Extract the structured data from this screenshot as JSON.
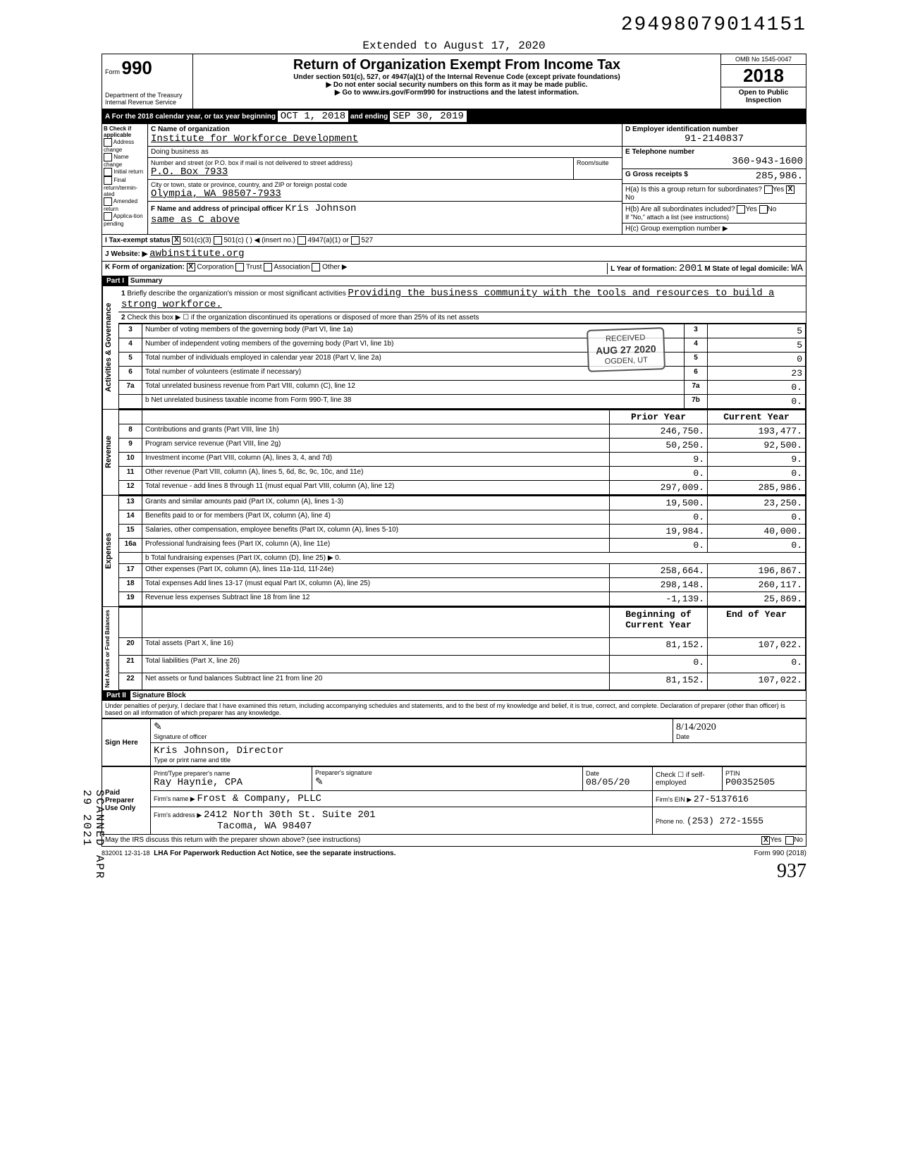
{
  "doc_id": "29498079014151",
  "extended_text": "Extended to August 17, 2020",
  "form": {
    "number": "990",
    "form_prefix": "Form",
    "dept": "Department of the Treasury",
    "irs": "Internal Revenue Service",
    "title": "Return of Organization Exempt From Income Tax",
    "subtitle": "Under section 501(c), 527, or 4947(a)(1) of the Internal Revenue Code (except private foundations)",
    "note1": "▶ Do not enter social security numbers on this form as it may be made public.",
    "note2": "▶ Go to www.irs.gov/Form990 for instructions and the latest information.",
    "omb": "OMB No 1545-0047",
    "year": "2018",
    "open": "Open to Public Inspection"
  },
  "line_a": {
    "label": "A For the 2018 calendar year, or tax year beginning",
    "begin": "OCT 1, 2018",
    "and_ending": "and ending",
    "end": "SEP 30, 2019"
  },
  "section_b": {
    "label": "B Check if applicable",
    "opts": [
      "Address change",
      "Name change",
      "Initial return",
      "Final return/termin-ated",
      "Amended return",
      "Applica-tion pending"
    ]
  },
  "section_c": {
    "label": "C Name of organization",
    "org_name": "Institute for Workforce Development",
    "dba_label": "Doing business as",
    "dba": "",
    "street_label": "Number and street (or P.O. box if mail is not delivered to street address)",
    "room_label": "Room/suite",
    "street": "P.O. Box 7933",
    "city_label": "City or town, state or province, country, and ZIP or foreign postal code",
    "city": "Olympia, WA  98507-7933",
    "officer_label": "F Name and address of principal officer",
    "officer": "Kris Johnson",
    "officer_addr": "same as C above"
  },
  "section_d": {
    "label": "D Employer identification number",
    "ein": "91-2140837"
  },
  "section_e": {
    "label": "E Telephone number",
    "phone": "360-943-1600"
  },
  "section_g": {
    "label": "G Gross receipts $",
    "value": "285,986."
  },
  "section_h": {
    "a_label": "H(a) Is this a group return for subordinates?",
    "a_yes": "Yes",
    "a_no": "No",
    "a_checked": "X",
    "b_label": "H(b) Are all subordinates included?",
    "b_yes": "Yes",
    "b_no": "No",
    "b_note": "If \"No,\" attach a list (see instructions)",
    "c_label": "H(c) Group exemption number ▶"
  },
  "line_i": {
    "label": "I Tax-exempt status",
    "c3_checked": "X",
    "c3": "501(c)(3)",
    "c_other": "501(c) (      ) ◀ (insert no.)",
    "a1": "4947(a)(1) or",
    "527": "527"
  },
  "line_j": {
    "label": "J Website: ▶",
    "value": "awbinstitute.org"
  },
  "line_k": {
    "label": "K Form of organization:",
    "corp_checked": "X",
    "corp": "Corporation",
    "trust": "Trust",
    "assoc": "Association",
    "other": "Other ▶"
  },
  "line_l": {
    "label": "L Year of formation:",
    "value": "2001",
    "state_label": "M State of legal domicile:",
    "state": "WA"
  },
  "part1": {
    "label": "Part I",
    "title": "Summary",
    "line1_label": "Briefly describe the organization's mission or most significant activities",
    "line1_text": "Providing the business community with the tools and resources to build a strong workforce.",
    "line2": "Check this box ▶ ☐ if the organization discontinued its operations or disposed of more than 25% of its net assets",
    "rows_top": [
      {
        "n": "3",
        "label": "Number of voting members of the governing body (Part VI, line 1a)",
        "box": "3",
        "val": "5"
      },
      {
        "n": "4",
        "label": "Number of independent voting members of the governing body (Part VI, line 1b)",
        "box": "4",
        "val": "5"
      },
      {
        "n": "5",
        "label": "Total number of individuals employed in calendar year 2018 (Part V, line 2a)",
        "box": "5",
        "val": "0"
      },
      {
        "n": "6",
        "label": "Total number of volunteers (estimate if necessary)",
        "box": "6",
        "val": "23"
      },
      {
        "n": "7a",
        "label": "Total unrelated business revenue from Part VIII, column (C), line 12",
        "box": "7a",
        "val": "0."
      },
      {
        "n": "",
        "label": "b Net unrelated business taxable income from Form 990-T, line 38",
        "box": "7b",
        "val": "0."
      }
    ],
    "col_headers": {
      "prior": "Prior Year",
      "current": "Current Year"
    },
    "revenue_rows": [
      {
        "n": "8",
        "label": "Contributions and grants (Part VIII, line 1h)",
        "prior": "246,750.",
        "current": "193,477."
      },
      {
        "n": "9",
        "label": "Program service revenue (Part VIII, line 2g)",
        "prior": "50,250.",
        "current": "92,500."
      },
      {
        "n": "10",
        "label": "Investment income (Part VIII, column (A), lines 3, 4, and 7d)",
        "prior": "9.",
        "current": "9."
      },
      {
        "n": "11",
        "label": "Other revenue (Part VIII, column (A), lines 5, 6d, 8c, 9c, 10c, and 11e)",
        "prior": "0.",
        "current": "0."
      },
      {
        "n": "12",
        "label": "Total revenue - add lines 8 through 11 (must equal Part VIII, column (A), line 12)",
        "prior": "297,009.",
        "current": "285,986."
      }
    ],
    "expense_rows": [
      {
        "n": "13",
        "label": "Grants and similar amounts paid (Part IX, column (A), lines 1-3)",
        "prior": "19,500.",
        "current": "23,250."
      },
      {
        "n": "14",
        "label": "Benefits paid to or for members (Part IX, column (A), line 4)",
        "prior": "0.",
        "current": "0."
      },
      {
        "n": "15",
        "label": "Salaries, other compensation, employee benefits (Part IX, column (A), lines 5-10)",
        "prior": "19,984.",
        "current": "40,000."
      },
      {
        "n": "16a",
        "label": "Professional fundraising fees (Part IX, column (A), line 11e)",
        "prior": "0.",
        "current": "0."
      },
      {
        "n": "",
        "label": "b Total fundraising expenses (Part IX, column (D), line 25) ▶             0.",
        "prior": "",
        "current": ""
      },
      {
        "n": "17",
        "label": "Other expenses (Part IX, column (A), lines 11a-11d, 11f-24e)",
        "prior": "258,664.",
        "current": "196,867."
      },
      {
        "n": "18",
        "label": "Total expenses Add lines 13-17 (must equal Part IX, column (A), line 25)",
        "prior": "298,148.",
        "current": "260,117."
      },
      {
        "n": "19",
        "label": "Revenue less expenses Subtract line 18 from line 12",
        "prior": "-1,139.",
        "current": "25,869."
      }
    ],
    "net_headers": {
      "begin": "Beginning of Current Year",
      "end": "End of Year"
    },
    "net_rows": [
      {
        "n": "20",
        "label": "Total assets (Part X, line 16)",
        "prior": "81,152.",
        "current": "107,022."
      },
      {
        "n": "21",
        "label": "Total liabilities (Part X, line 26)",
        "prior": "0.",
        "current": "0."
      },
      {
        "n": "22",
        "label": "Net assets or fund balances Subtract line 21 from line 20",
        "prior": "81,152.",
        "current": "107,022."
      }
    ],
    "vert_labels": {
      "activities": "Activities & Governance",
      "revenue": "Revenue",
      "expenses": "Expenses",
      "net": "Net Assets or Fund Balances"
    }
  },
  "stamp": {
    "received": "RECEIVED",
    "date": "AUG 27 2020",
    "where": "OGDEN, UT",
    "side": "IRS-OSC"
  },
  "part2": {
    "label": "Part II",
    "title": "Signature Block",
    "perjury": "Under penalties of perjury, I declare that I have examined this return, including accompanying schedules and statements, and to the best of my knowledge and belief, it is true, correct, and complete. Declaration of preparer (other than officer) is based on all information of which preparer has any knowledge.",
    "sign_here": "Sign Here",
    "sig_officer_label": "Signature of officer",
    "date_label": "Date",
    "date_value": "8/14/2020",
    "officer_name": "Kris Johnson, Director",
    "type_label": "Type or print name and title",
    "paid": "Paid Preparer Use Only",
    "preparer_name_label": "Print/Type preparer's name",
    "preparer_name": "Ray Haynie, CPA",
    "preparer_sig_label": "Preparer's signature",
    "preparer_date_label": "Date",
    "preparer_date": "08/05/20",
    "self_emp_label": "Check ☐ if self-employed",
    "ptin_label": "PTIN",
    "ptin": "P00352505",
    "firm_name_label": "Firm's name ▶",
    "firm_name": "Frost & Company, PLLC",
    "firm_ein_label": "Firm's EIN ▶",
    "firm_ein": "27-5137616",
    "firm_addr_label": "Firm's address ▶",
    "firm_addr1": "2412 North 30th St. Suite 201",
    "firm_addr2": "Tacoma, WA 98407",
    "phone_label": "Phone no.",
    "phone": "(253) 272-1555",
    "discuss": "May the IRS discuss this return with the preparer shown above? (see instructions)",
    "discuss_yes": "Yes",
    "discuss_no": "No",
    "discuss_checked": "X"
  },
  "footer": {
    "code": "832001 12-31-18",
    "lha": "LHA  For Paperwork Reduction Act Notice, see the separate instructions.",
    "form": "Form 990 (2018)"
  },
  "side_text": "SCANNED APR 29 2021",
  "handwritten": "937"
}
